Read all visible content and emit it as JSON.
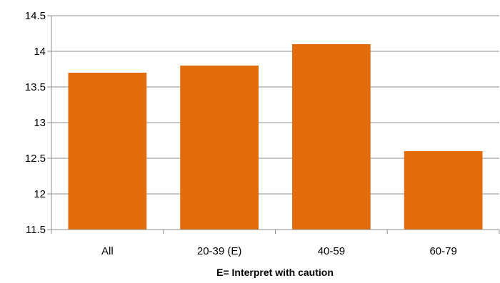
{
  "chart_data": {
    "type": "bar",
    "categories": [
      "All",
      "20-39 (E)",
      "40-59",
      "60-79"
    ],
    "values": [
      13.7,
      13.8,
      14.1,
      12.6
    ],
    "title": "",
    "xlabel": "E= Interpret with caution",
    "ylabel": "",
    "ylim": [
      11.5,
      14.5
    ],
    "yticks": [
      11.5,
      12,
      12.5,
      13,
      13.5,
      14,
      14.5
    ],
    "grid": true,
    "legend": "none",
    "bar_color": "#E36C0A"
  }
}
